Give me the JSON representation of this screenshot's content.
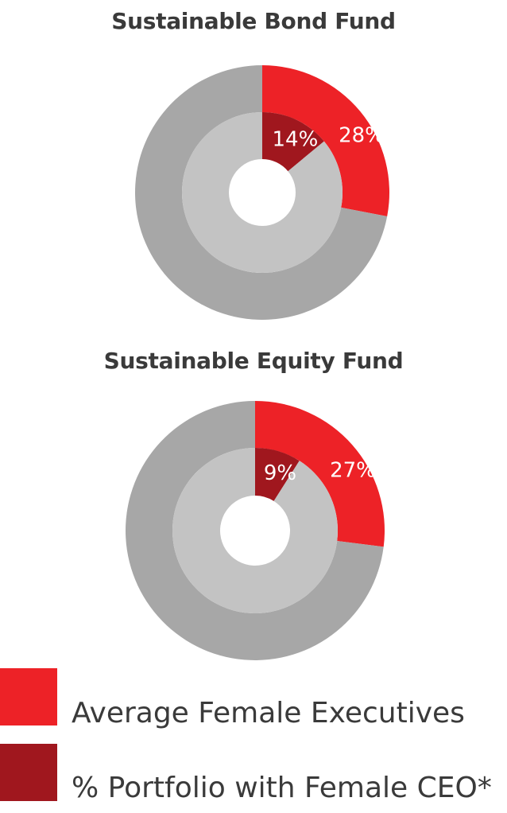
{
  "chart_data": [
    {
      "type": "donut",
      "title": "Sustainable Bond Fund",
      "series": [
        {
          "name": "Average Female Executives",
          "values": [
            28,
            72
          ],
          "labels": [
            "28%",
            ""
          ]
        },
        {
          "name": "% Portfolio with Female CEO*",
          "values": [
            14,
            86
          ],
          "labels": [
            "14%",
            ""
          ]
        }
      ]
    },
    {
      "type": "donut",
      "title": "Sustainable Equity Fund",
      "series": [
        {
          "name": "Average Female Executives",
          "values": [
            27,
            73
          ],
          "labels": [
            "27%",
            ""
          ]
        },
        {
          "name": "% Portfolio with Female CEO*",
          "values": [
            9,
            91
          ],
          "labels": [
            "9%",
            ""
          ]
        }
      ]
    }
  ],
  "legend": {
    "placement": "bottom-left",
    "items": [
      {
        "label": "Average Female Executives",
        "color": "#ED2227"
      },
      {
        "label": "% Portfolio with Female CEO*",
        "color": "#A0171E"
      }
    ]
  },
  "colors": {
    "outer_highlight": "#ED2227",
    "inner_highlight": "#A0171E",
    "outer_rest": "#A7A7A7",
    "inner_rest": "#C3C3C3",
    "label_text": "#ffffff"
  }
}
